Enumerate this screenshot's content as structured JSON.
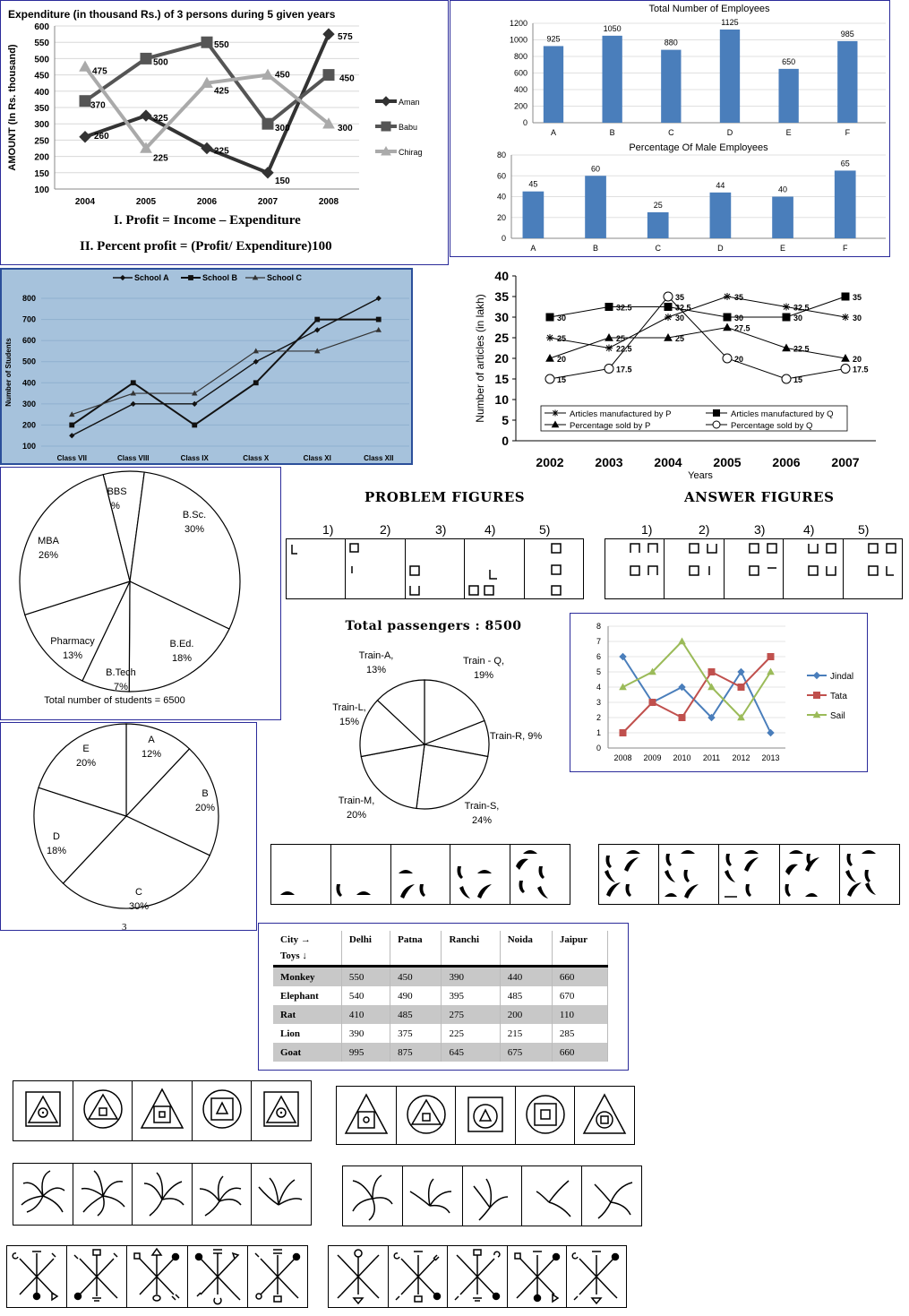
{
  "labels": {
    "formula1": "I. Profit = Income – Expenditure",
    "formula2": "II. Percent profit = (Profit/ Expenditure)100",
    "problem_figures": "PROBLEM FIGURES",
    "answer_figures": "ANSWER FIGURES",
    "figure_numbers": [
      "1)",
      "2)",
      "3)",
      "4)",
      "5)"
    ],
    "pie_bottom_note": "3",
    "table_header_city": "City →",
    "table_header_toys": "Toys ↓"
  },
  "chart_data": [
    {
      "id": "expenditure",
      "type": "line",
      "title": "Expenditure (in thousand Rs.) of 3 persons during 5 given years",
      "ylabel": "AMOUNT (In Rs. thousand)",
      "ylim": [
        100,
        600
      ],
      "yticks": [
        "100",
        "150",
        "200",
        "250",
        "300",
        "350",
        "400",
        "450",
        "500",
        "550",
        "600"
      ],
      "categories": [
        "2004",
        "2005",
        "2006",
        "2007",
        "2008"
      ],
      "series": [
        {
          "name": "Aman",
          "color": "#333333",
          "marker": "diamond",
          "values": [
            260,
            325,
            225,
            150,
            575
          ],
          "labels": [
            "260",
            "325",
            "225",
            "150",
            "575"
          ]
        },
        {
          "name": "Babu",
          "color": "#555555",
          "marker": "square",
          "values": [
            370,
            500,
            550,
            300,
            450
          ],
          "labels": [
            "370",
            "500",
            "550",
            "300",
            "450"
          ]
        },
        {
          "name": "Chirag",
          "color": "#aaaaaa",
          "marker": "triangle",
          "values": [
            475,
            225,
            425,
            450,
            300
          ],
          "labels": [
            "475",
            "225",
            "425",
            "450",
            "300"
          ]
        }
      ]
    },
    {
      "id": "employees",
      "type": "bar",
      "title": "Total Number of Employees",
      "ylim": [
        0,
        1200
      ],
      "yticks": [
        "0",
        "200",
        "400",
        "600",
        "800",
        "1000",
        "1200"
      ],
      "categories": [
        "A",
        "B",
        "C",
        "D",
        "E",
        "F"
      ],
      "values": [
        925,
        1050,
        880,
        1125,
        650,
        985
      ],
      "labels": [
        "925",
        "1050",
        "880",
        "1125",
        "650",
        "985"
      ],
      "color": "#4a7ebb"
    },
    {
      "id": "male_pct",
      "type": "bar",
      "title": "Percentage Of Male Employees",
      "ylim": [
        0,
        80
      ],
      "yticks": [
        "0",
        "20",
        "40",
        "60",
        "80"
      ],
      "categories": [
        "A",
        "B",
        "C",
        "D",
        "E",
        "F"
      ],
      "values": [
        45,
        60,
        25,
        44,
        40,
        65
      ],
      "labels": [
        "45",
        "60",
        "25",
        "44",
        "40",
        "65"
      ],
      "color": "#4a7ebb"
    },
    {
      "id": "students",
      "type": "line",
      "ylabel": "Number of Students",
      "ylim": [
        100,
        800
      ],
      "yticks": [
        "100",
        "200",
        "300",
        "400",
        "500",
        "600",
        "700",
        "800"
      ],
      "categories": [
        "Class VII",
        "Class VIII",
        "Class IX",
        "Class X",
        "Class XI",
        "Class XII"
      ],
      "background": "#a6c2dc",
      "series": [
        {
          "name": "School A",
          "marker": "diamond",
          "values": [
            150,
            300,
            300,
            500,
            650,
            800
          ]
        },
        {
          "name": "School B",
          "marker": "square",
          "values": [
            200,
            400,
            200,
            400,
            700,
            700
          ]
        },
        {
          "name": "School C",
          "marker": "triangle",
          "values": [
            250,
            350,
            350,
            550,
            550,
            650
          ]
        }
      ]
    },
    {
      "id": "articles",
      "type": "line",
      "ylabel": "Number of articles (in lakh)",
      "xlabel": "Years",
      "ylim": [
        0,
        40
      ],
      "yticks": [
        "0",
        "5",
        "10",
        "15",
        "20",
        "25",
        "30",
        "35",
        "40"
      ],
      "categories": [
        "2002",
        "2003",
        "2004",
        "2005",
        "2006",
        "2007"
      ],
      "series": [
        {
          "name": "Articles manufactured by P",
          "marker": "star",
          "values": [
            25,
            22.5,
            30,
            35,
            32.5,
            30
          ],
          "labels": [
            "25",
            "22.5",
            "30",
            "35",
            "32.5",
            "30"
          ]
        },
        {
          "name": "Articles manufactured by Q",
          "marker": "square",
          "values": [
            30,
            32.5,
            32.5,
            30,
            30,
            35
          ],
          "labels": [
            "30",
            "32.5",
            "32.5",
            "30",
            "30",
            "35"
          ]
        },
        {
          "name": "Percentage sold by P",
          "marker": "triangle",
          "values": [
            20,
            25,
            25,
            27.5,
            22.5,
            20
          ],
          "labels": [
            "20",
            "25",
            "25",
            "27.5",
            "22.5",
            "20"
          ]
        },
        {
          "name": "Percentage sold by Q",
          "marker": "circle",
          "values": [
            15,
            17.5,
            35,
            20,
            15,
            17.5
          ],
          "labels": [
            "15",
            "17.5",
            "35",
            "20",
            "15",
            "17.5"
          ]
        }
      ]
    },
    {
      "id": "students_pie",
      "type": "pie",
      "note": "Total number of students = 6500",
      "slices": [
        {
          "label": "MBBS",
          "pct_label": "6%",
          "value": 6
        },
        {
          "label": "B.Sc.",
          "pct_label": "30%",
          "value": 30
        },
        {
          "label": "B.Ed.",
          "pct_label": "18%",
          "value": 18
        },
        {
          "label": "B.Tech",
          "pct_label": "7%",
          "value": 7
        },
        {
          "label": "Pharmacy",
          "pct_label": "13%",
          "value": 13
        },
        {
          "label": "MBA",
          "pct_label": "26%",
          "value": 26
        }
      ]
    },
    {
      "id": "passengers_pie",
      "type": "pie",
      "title": "Total  passengers  :  8500",
      "slices": [
        {
          "label": "Train - Q,",
          "pct_label": "19%",
          "value": 19
        },
        {
          "label": "Train-R, 9%",
          "pct_label": "",
          "value": 9
        },
        {
          "label": "Train-S,",
          "pct_label": "24%",
          "value": 24
        },
        {
          "label": "Train-M,",
          "pct_label": "20%",
          "value": 20
        },
        {
          "label": "Train-L,",
          "pct_label": "15%",
          "value": 15
        },
        {
          "label": "Train-A,",
          "pct_label": "13%",
          "value": 13
        }
      ]
    },
    {
      "id": "shares",
      "type": "line",
      "ylim": [
        0,
        8
      ],
      "yticks": [
        "0",
        "1",
        "2",
        "3",
        "4",
        "5",
        "6",
        "7",
        "8"
      ],
      "categories": [
        "2008",
        "2009",
        "2010",
        "2011",
        "2012",
        "2013"
      ],
      "series": [
        {
          "name": "Jindal",
          "color": "#4a7ebb",
          "marker": "diamond",
          "values": [
            6,
            3,
            4,
            2,
            5,
            1
          ]
        },
        {
          "name": "Tata",
          "color": "#c0504d",
          "marker": "square",
          "values": [
            1,
            3,
            2,
            5,
            4,
            6
          ]
        },
        {
          "name": "Sail",
          "color": "#9bbb59",
          "marker": "triangle",
          "values": [
            4,
            5,
            7,
            4,
            2,
            5
          ]
        }
      ]
    },
    {
      "id": "abcde_pie",
      "type": "pie",
      "slices": [
        {
          "label": "A",
          "pct_label": "12%",
          "value": 12
        },
        {
          "label": "B",
          "pct_label": "20%",
          "value": 20
        },
        {
          "label": "C",
          "pct_label": "30%",
          "value": 30
        },
        {
          "label": "D",
          "pct_label": "18%",
          "value": 18
        },
        {
          "label": "E",
          "pct_label": "20%",
          "value": 20
        }
      ]
    },
    {
      "id": "toys",
      "type": "table",
      "columns": [
        "Delhi",
        "Patna",
        "Ranchi",
        "Noida",
        "Jaipur"
      ],
      "rows": [
        {
          "name": "Monkey",
          "values": [
            "550",
            "450",
            "390",
            "440",
            "660"
          ]
        },
        {
          "name": "Elephant",
          "values": [
            "540",
            "490",
            "395",
            "485",
            "670"
          ]
        },
        {
          "name": "Rat",
          "values": [
            "410",
            "485",
            "275",
            "200",
            "110"
          ]
        },
        {
          "name": "Lion",
          "values": [
            "390",
            "375",
            "225",
            "215",
            "285"
          ]
        },
        {
          "name": "Goat",
          "values": [
            "995",
            "875",
            "645",
            "675",
            "660"
          ]
        }
      ]
    }
  ]
}
